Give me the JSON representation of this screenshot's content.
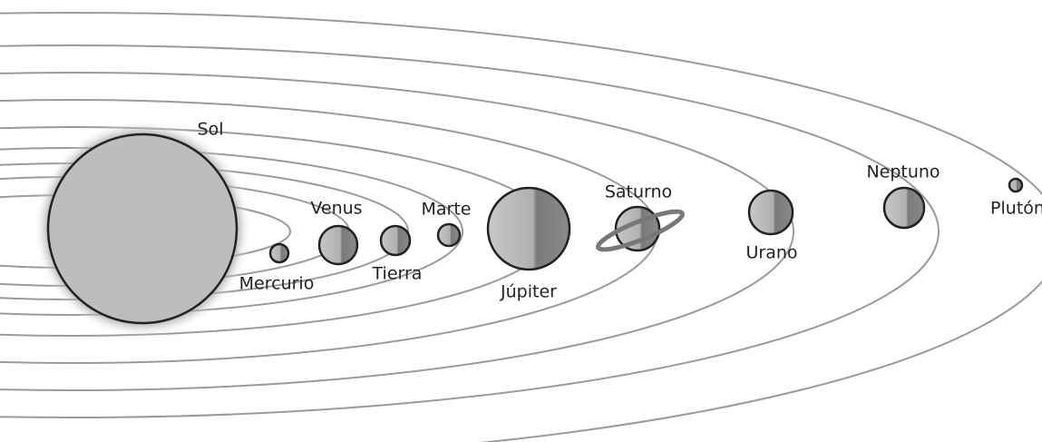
{
  "labels": {
    "sun": "Sol",
    "mercury": "Mercurio",
    "venus": "Venus",
    "earth": "Tierra",
    "mars": "Marte",
    "jupiter": "Júpiter",
    "saturn": "Saturno",
    "uranus": "Urano",
    "neptune": "Neptuno",
    "pluto": "Plutón"
  }
}
